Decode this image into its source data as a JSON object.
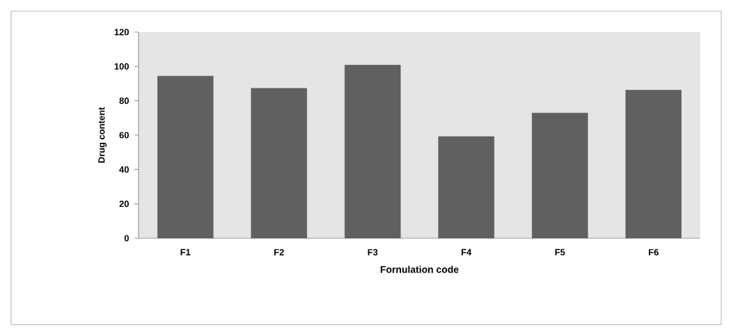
{
  "chart_data": {
    "type": "bar",
    "xlabel": "Fornulation code",
    "ylabel": "Drug content",
    "categories": [
      "F1",
      "F2",
      "F3",
      "F4",
      "F5",
      "F6"
    ],
    "values": [
      94.4,
      87.3,
      100.8,
      59.2,
      72.9,
      86.2
    ],
    "color": "#606060",
    "ylim": [
      0,
      120
    ],
    "yticks": [
      0,
      20,
      40,
      60,
      80,
      100,
      120
    ],
    "grid": false
  }
}
